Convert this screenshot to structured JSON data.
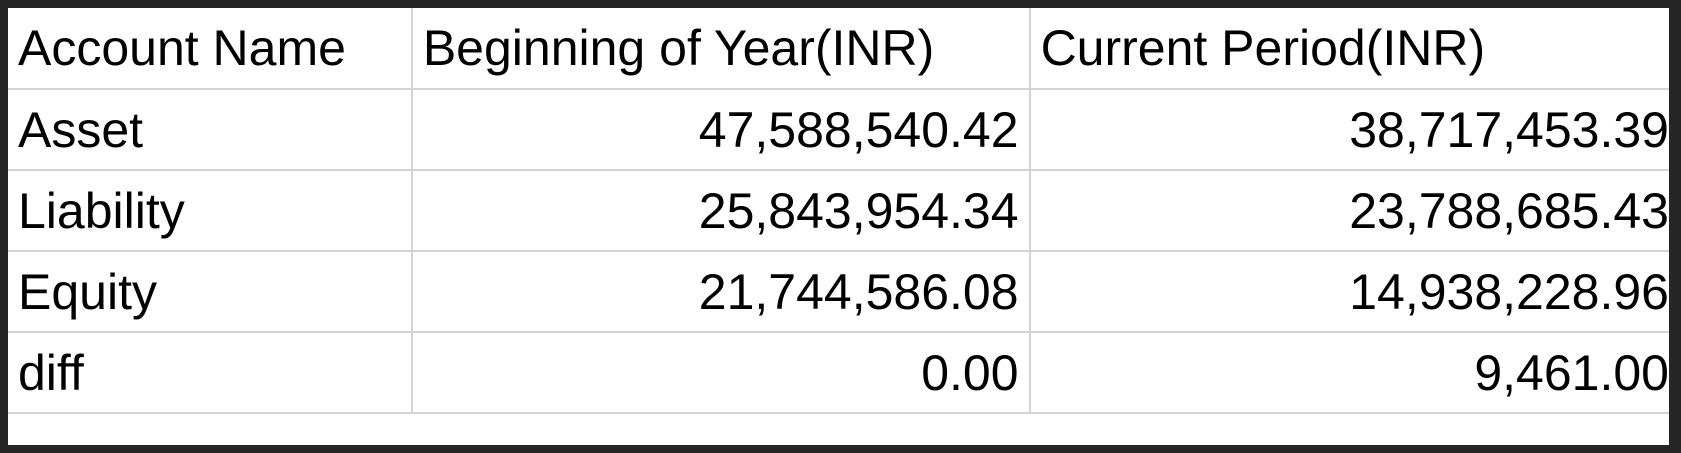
{
  "table": {
    "headers": [
      "Account Name",
      "Beginning of Year(INR)",
      "Current Period(INR)"
    ],
    "rows": [
      {
        "name": "Asset",
        "beginning": "47,588,540.42",
        "current": "38,717,453.39"
      },
      {
        "name": "Liability",
        "beginning": "25,843,954.34",
        "current": "23,788,685.43"
      },
      {
        "name": "Equity",
        "beginning": "21,744,586.08",
        "current": "14,938,228.96"
      },
      {
        "name": "diff",
        "beginning": "0.00",
        "current": "9,461.00"
      }
    ]
  }
}
